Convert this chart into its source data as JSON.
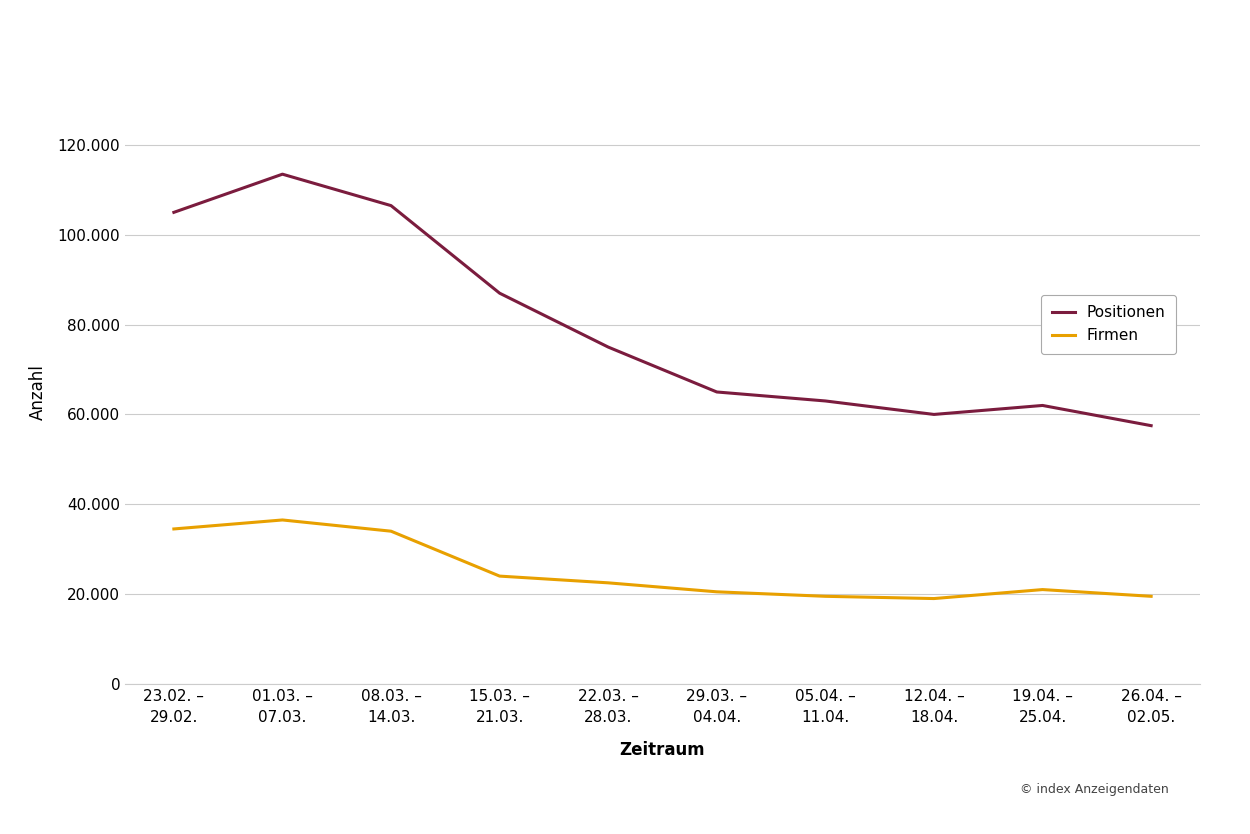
{
  "x_labels": [
    "23.02. –\n29.02.",
    "01.03. –\n07.03.",
    "08.03. –\n14.03.",
    "15.03. –\n21.03.",
    "22.03. –\n28.03.",
    "29.03. –\n04.04.",
    "05.04. –\n11.04.",
    "12.04. –\n18.04.",
    "19.04. –\n25.04.",
    "26.04. –\n02.05."
  ],
  "positionen": [
    105000,
    113500,
    106500,
    87000,
    75000,
    65000,
    63000,
    60000,
    62000,
    57500
  ],
  "firmen": [
    34500,
    36500,
    34000,
    24000,
    22500,
    20500,
    19500,
    19000,
    21000,
    19500
  ],
  "positionen_color": "#7B1C3E",
  "firmen_color": "#E8A000",
  "background_color": "#ffffff",
  "ylabel": "Anzahl",
  "xlabel": "Zeitraum",
  "legend_positionen": "Positionen",
  "legend_firmen": "Firmen",
  "ylim": [
    0,
    130000
  ],
  "yticks": [
    0,
    20000,
    40000,
    60000,
    80000,
    100000,
    120000
  ],
  "copyright_text": "© index Anzeigendaten",
  "axis_fontsize": 12,
  "tick_fontsize": 11,
  "legend_fontsize": 11,
  "line_width": 2.2,
  "grid_color": "#cccccc",
  "grid_linewidth": 0.8
}
